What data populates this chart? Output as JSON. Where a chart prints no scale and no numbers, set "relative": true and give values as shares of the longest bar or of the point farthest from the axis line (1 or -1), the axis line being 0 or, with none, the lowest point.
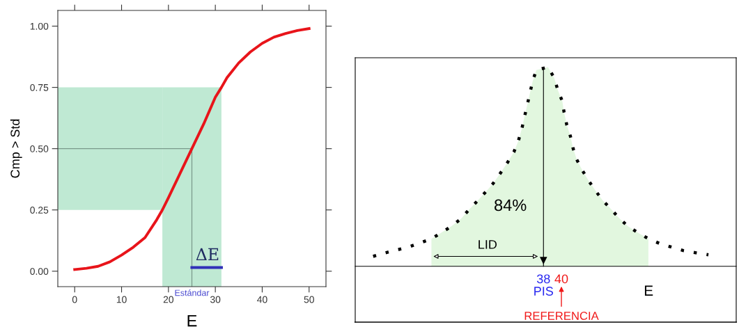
{
  "chart_data": [
    {
      "type": "line",
      "xlabel": "E",
      "ylabel": "Cmp > Std",
      "xlim": [
        -3.6,
        53.6
      ],
      "ylim": [
        -0.063,
        1.064
      ],
      "xticks": [
        0,
        10,
        20,
        30,
        40,
        50
      ],
      "yticks": [
        {
          "value": 0,
          "label": "0.00"
        },
        {
          "value": 0.25,
          "label": "0.25"
        },
        {
          "value": 0.5,
          "label": "0.50"
        },
        {
          "value": 0.75,
          "label": "0.75"
        },
        {
          "value": 1,
          "label": "1.00"
        }
      ],
      "grid": false,
      "legend": false,
      "series": [
        {
          "color": "#e8141a",
          "x": [
            0,
            2.5,
            5,
            7.5,
            10,
            12.5,
            15,
            17.5,
            18.7,
            20,
            22.5,
            25,
            27.5,
            30,
            31.3,
            32.5,
            35,
            37.5,
            40,
            42.5,
            45,
            47.5,
            50
          ],
          "values": [
            0.007,
            0.012,
            0.02,
            0.038,
            0.066,
            0.098,
            0.137,
            0.21,
            0.25,
            0.3,
            0.4,
            0.5,
            0.6,
            0.71,
            0.75,
            0.79,
            0.85,
            0.895,
            0.93,
            0.955,
            0.97,
            0.982,
            0.99
          ]
        },
        {
          "name": "ΔE",
          "color": "#3030b8",
          "x": [
            25,
            31.3
          ],
          "values": [
            0.015,
            0.015
          ]
        }
      ],
      "bands": [
        {
          "axis": "y",
          "from": 0.25,
          "to": 0.75,
          "color": "#bfe9d3"
        },
        {
          "axis": "x",
          "from": 18.7,
          "to": 31.3,
          "color": "#bfe9d3"
        }
      ],
      "ref_lines": [
        {
          "axis": "x",
          "value": 25,
          "label": "Estándar",
          "color": "#7a9a8a"
        },
        {
          "axis": "y",
          "value": 0.5,
          "color": "#7a9a8a"
        }
      ]
    },
    {
      "type": "line",
      "relative": true,
      "xlabel": "E",
      "xlim": [
        17,
        59.5
      ],
      "xticks": [
        38,
        40
      ],
      "legend": false,
      "grid": false,
      "series": [
        {
          "type": "area",
          "color": "#e2f7df",
          "x": [
            25.5,
            26.6,
            27.7,
            28.8,
            29.7,
            30.6,
            31.6,
            32.4,
            33.2,
            34.0,
            34.7,
            35.2,
            35.6,
            35.9,
            36.2,
            36.5,
            36.8,
            37.2,
            38.5,
            39.2,
            39.6,
            40.1,
            40.3,
            40.6,
            41.0,
            41.3,
            41.7,
            42.3,
            43.0,
            43.8,
            44.6,
            45.5,
            46.4,
            47.4,
            48.6,
            49.7
          ],
          "values": [
            0.138,
            0.169,
            0.2,
            0.239,
            0.285,
            0.327,
            0.376,
            0.417,
            0.468,
            0.522,
            0.574,
            0.63,
            0.693,
            0.754,
            0.812,
            0.872,
            0.93,
            0.985,
            1.0,
            0.946,
            0.885,
            0.829,
            0.773,
            0.71,
            0.654,
            0.593,
            0.537,
            0.485,
            0.432,
            0.38,
            0.331,
            0.289,
            0.244,
            0.202,
            0.167,
            0.139
          ]
        },
        {
          "type": "line",
          "line_style": "dotted",
          "color": "#000000",
          "x": [
            19.0,
            20.2,
            21.6,
            22.9,
            24.2,
            25.5,
            26.6,
            27.7,
            28.8,
            29.7,
            30.6,
            31.6,
            32.4,
            33.2,
            34.0,
            34.7,
            35.2,
            35.6,
            35.9,
            36.2,
            36.5,
            36.8,
            37.2,
            38.5,
            39.2,
            39.6,
            40.1,
            40.3,
            40.6,
            41.0,
            41.3,
            41.7,
            42.3,
            43.0,
            43.8,
            44.6,
            45.5,
            46.4,
            47.4,
            48.6,
            49.7,
            51.0,
            52.3,
            53.6,
            55.0,
            56.4
          ],
          "values": [
            0.05,
            0.066,
            0.082,
            0.096,
            0.117,
            0.138,
            0.169,
            0.2,
            0.239,
            0.285,
            0.327,
            0.376,
            0.417,
            0.468,
            0.522,
            0.574,
            0.63,
            0.693,
            0.754,
            0.812,
            0.872,
            0.93,
            0.985,
            1.0,
            0.946,
            0.885,
            0.829,
            0.773,
            0.71,
            0.654,
            0.593,
            0.537,
            0.485,
            0.432,
            0.38,
            0.331,
            0.289,
            0.244,
            0.202,
            0.167,
            0.139,
            0.114,
            0.096,
            0.079,
            0.068,
            0.058
          ]
        }
      ],
      "ref_lines": [
        {
          "axis": "x",
          "value": 38,
          "color": "#000000"
        }
      ],
      "annotations": [
        "84%",
        "LID",
        "PIS",
        "REFERENCIA"
      ]
    }
  ]
}
